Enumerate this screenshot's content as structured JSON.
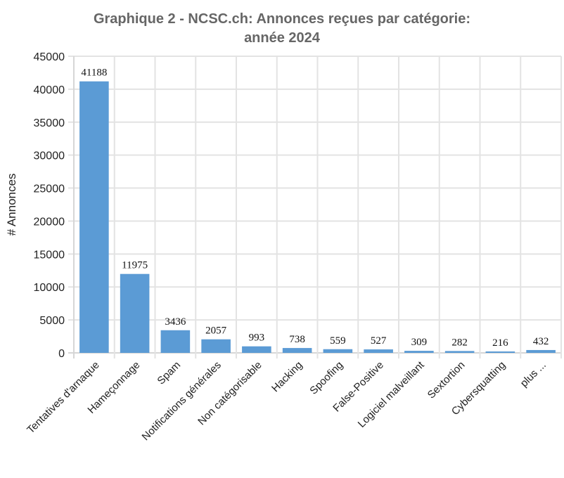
{
  "chart_data": {
    "type": "bar",
    "title": [
      "Graphique 2 - NCSC.ch: Annonces reçues par catégorie:",
      "année 2024"
    ],
    "ylabel": "# Annonces",
    "xlabel": "",
    "ylim": [
      0,
      45000
    ],
    "ytick_step": 5000,
    "yticks": [
      "0",
      "5000",
      "10000",
      "15000",
      "20000",
      "25000",
      "30000",
      "35000",
      "40000",
      "45000"
    ],
    "grid": true,
    "categories": [
      "Tentatives d'arnaque",
      "Hameçonnage",
      "Spam",
      "Notifications générales",
      "Non catégorisable",
      "Hacking",
      "Spoofing",
      "False-Positive",
      "Logiciel malveillant",
      "Sextortion",
      "Cybersquatting",
      "plus ..."
    ],
    "values": [
      41188,
      11975,
      3436,
      2057,
      993,
      738,
      559,
      527,
      309,
      282,
      216,
      432
    ],
    "value_labels": [
      "41188",
      "11975",
      "3436",
      "2057",
      "993",
      "738",
      "559",
      "527",
      "309",
      "282",
      "216",
      "432"
    ],
    "bar_color": "#5b9bd5"
  }
}
